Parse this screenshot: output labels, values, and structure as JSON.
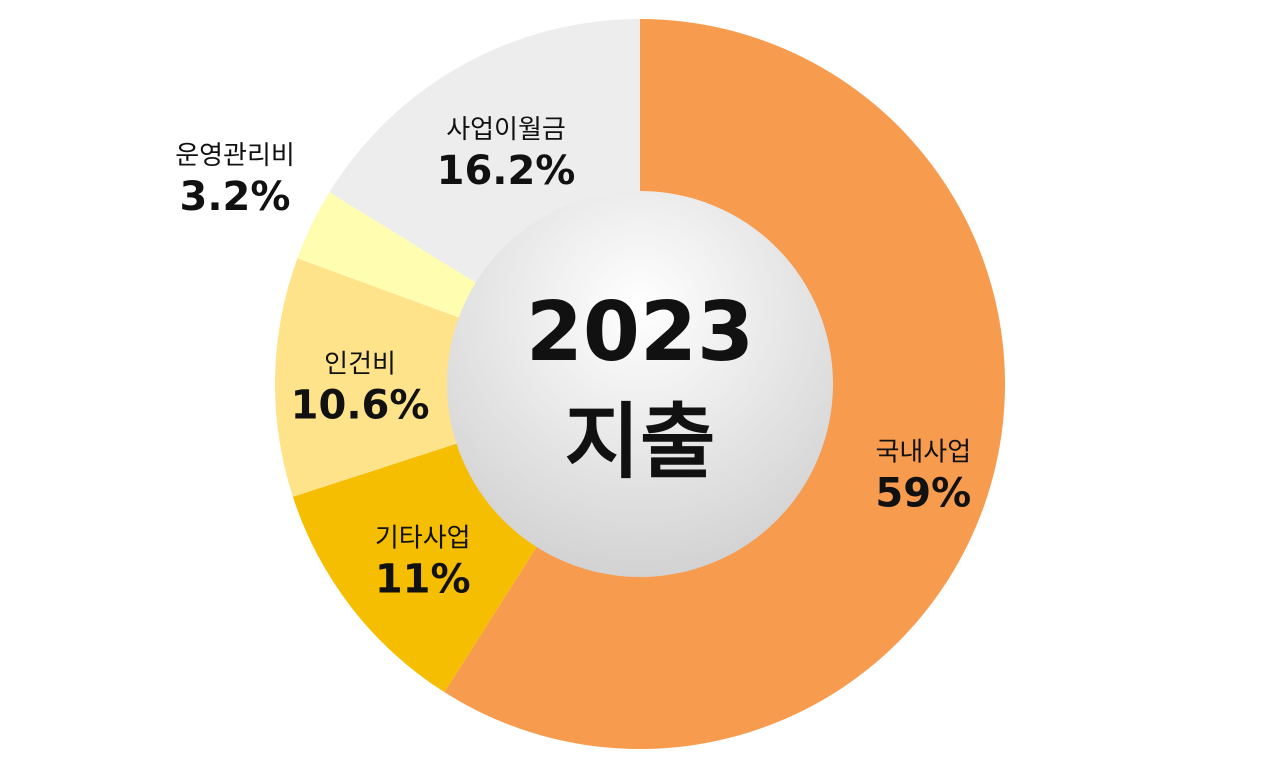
{
  "chart_data": {
    "type": "pie",
    "variant": "donut",
    "center_label": [
      "2023",
      "지출"
    ],
    "start_angle_deg": 0,
    "direction": "clockwise",
    "slices": [
      {
        "label": "국내사업",
        "value": 59,
        "display": "59%",
        "color": "#F79C4E"
      },
      {
        "label": "기타사업",
        "value": 11,
        "display": "11%",
        "color": "#F6BE00"
      },
      {
        "label": "인건비",
        "value": 10.6,
        "display": "10.6%",
        "color": "#FFE38B"
      },
      {
        "label": "운영관리비",
        "value": 3.2,
        "display": "3.2%",
        "color": "#FFFDB0"
      },
      {
        "label": "사업이월금",
        "value": 16.2,
        "display": "16.2%",
        "color": "#EDEDED"
      }
    ],
    "center_gradient": [
      "#ffffff",
      "#cfcfcf"
    ]
  }
}
